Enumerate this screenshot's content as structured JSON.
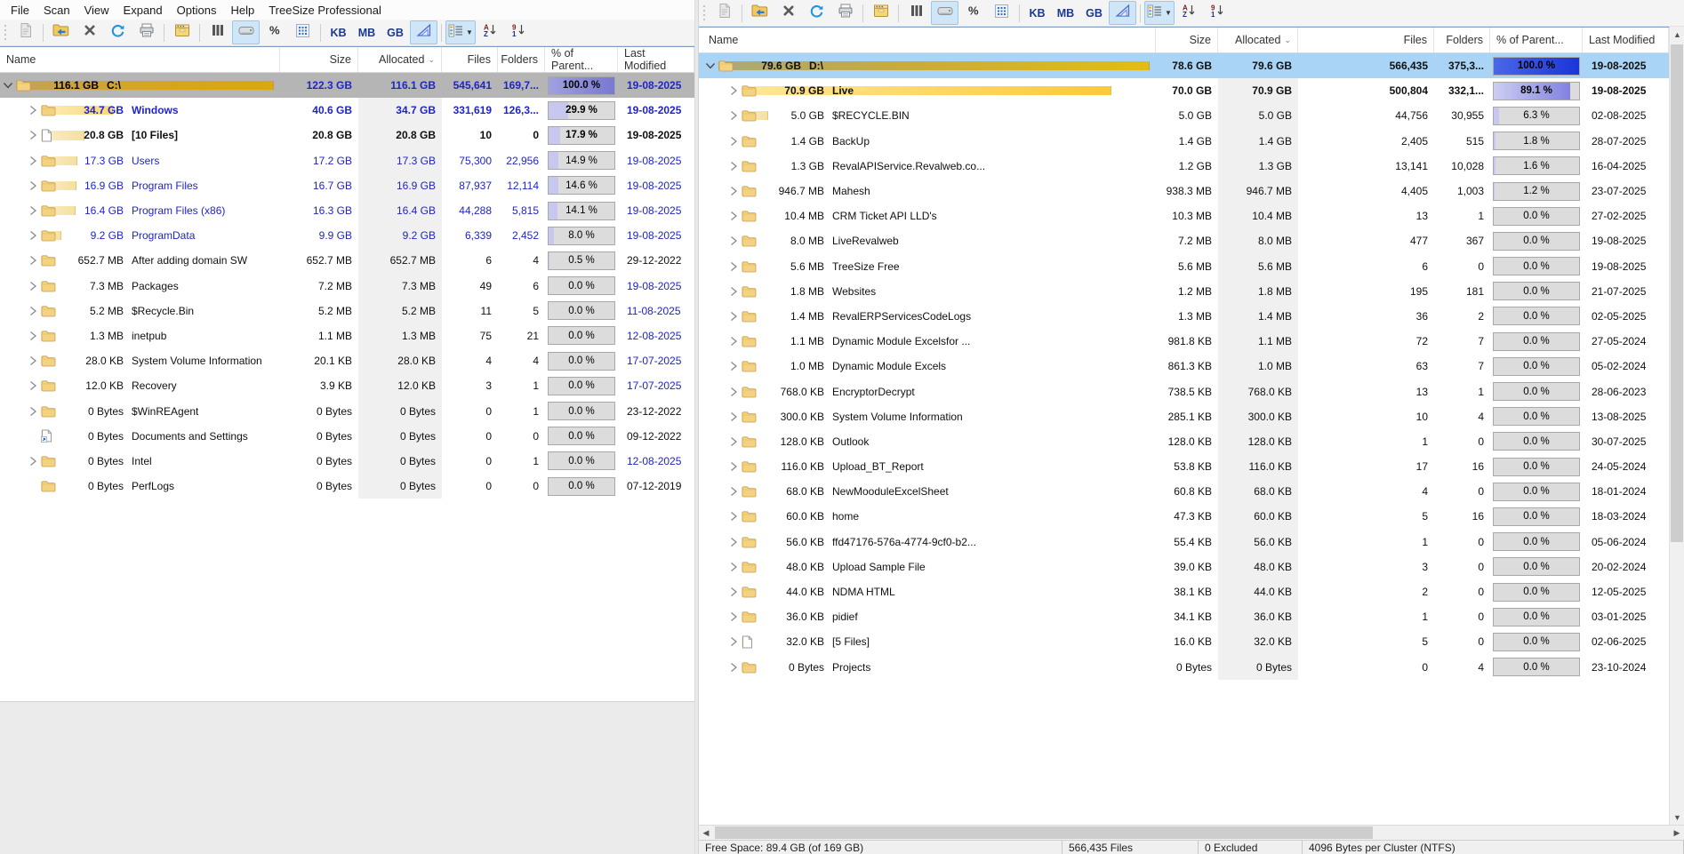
{
  "app_title": "TreeSize Professional",
  "menu": {
    "items": [
      "File",
      "Scan",
      "View",
      "Expand",
      "Options",
      "Help",
      "TreeSize Professional"
    ]
  },
  "toolbar": {
    "items": [
      {
        "type": "grip",
        "name": "toolbar-grip"
      },
      {
        "type": "btn",
        "icon": "report-icon",
        "disabled": true
      },
      {
        "type": "sep"
      },
      {
        "type": "btn",
        "icon": "select-directory-icon"
      },
      {
        "type": "btn",
        "icon": "stop-scan-icon"
      },
      {
        "type": "btn",
        "icon": "refresh-icon"
      },
      {
        "type": "btn",
        "icon": "print-icon"
      },
      {
        "type": "sep"
      },
      {
        "type": "btn",
        "icon": "archive-icon"
      },
      {
        "type": "sep"
      },
      {
        "type": "btn",
        "icon": "columns-icon"
      },
      {
        "type": "btn",
        "icon": "disk-space-icon",
        "pressed": true
      },
      {
        "type": "btn",
        "icon": "percent-icon"
      },
      {
        "type": "btn",
        "icon": "details-grid-icon"
      },
      {
        "type": "sep"
      },
      {
        "type": "btn",
        "label": "KB",
        "name": "unit-kb-button"
      },
      {
        "type": "btn",
        "label": "MB",
        "name": "unit-mb-button"
      },
      {
        "type": "btn",
        "label": "GB",
        "name": "unit-gb-button"
      },
      {
        "type": "btn",
        "icon": "size-chart-icon",
        "pressed": true
      },
      {
        "type": "sep"
      },
      {
        "type": "btn",
        "icon": "view-list-icon",
        "pressed": true,
        "dropdown": true
      },
      {
        "type": "btn",
        "icon": "sort-az-icon"
      },
      {
        "type": "btn",
        "icon": "sort-numeric-icon"
      }
    ]
  },
  "grid": {
    "columns": [
      {
        "label": "Name",
        "align": "left"
      },
      {
        "label": "Size",
        "align": "right"
      },
      {
        "label": "Allocated",
        "align": "right",
        "sort": "desc"
      },
      {
        "label": "Files",
        "align": "right"
      },
      {
        "label": "Folders",
        "align": "right"
      },
      {
        "label": "% of Parent...",
        "align": "left"
      },
      {
        "label": "Last Modified",
        "align": "left"
      }
    ]
  },
  "row_fields": [
    "indent",
    "chevron",
    "icon",
    "size_label",
    "name",
    "size",
    "allocated",
    "files",
    "folders",
    "pct_label",
    "pct_value",
    "last_modified",
    "text_color",
    "bold",
    "selected",
    "bar_style",
    "date_color"
  ],
  "left_pane": {
    "rows": [
      [
        0,
        "v",
        "folder",
        "116.1 GB",
        "C:\\",
        "122.3 GB",
        "116.1 GB",
        "545,641",
        "169,7...",
        "100.0 %",
        100,
        "19-08-2025",
        "navy",
        true,
        true,
        "root-l",
        "navy"
      ],
      [
        1,
        ">",
        "folder",
        "34.7 GB",
        "Windows",
        "40.6 GB",
        "34.7 GB",
        "331,619",
        "126,3...",
        "29.9 %",
        29.9,
        "19-08-2025",
        "navy",
        true,
        false,
        "mid",
        "navy"
      ],
      [
        1,
        ">",
        "file",
        "20.8 GB",
        "[10 Files]",
        "20.8 GB",
        "20.8 GB",
        "10",
        "0",
        "17.9 %",
        17.9,
        "19-08-2025",
        "black",
        true,
        false,
        "lo",
        "black"
      ],
      [
        1,
        ">",
        "folder",
        "17.3 GB",
        "Users",
        "17.2 GB",
        "17.3 GB",
        "75,300",
        "22,956",
        "14.9 %",
        14.9,
        "19-08-2025",
        "navy",
        false,
        false,
        "lo",
        "navy"
      ],
      [
        1,
        ">",
        "folder",
        "16.9 GB",
        "Program Files",
        "16.7 GB",
        "16.9 GB",
        "87,937",
        "12,114",
        "14.6 %",
        14.6,
        "19-08-2025",
        "navy",
        false,
        false,
        "lo",
        "navy"
      ],
      [
        1,
        ">",
        "folder",
        "16.4 GB",
        "Program Files (x86)",
        "16.3 GB",
        "16.4 GB",
        "44,288",
        "5,815",
        "14.1 %",
        14.1,
        "19-08-2025",
        "navy",
        false,
        false,
        "lo",
        "navy"
      ],
      [
        1,
        ">",
        "folder",
        "9.2 GB",
        "ProgramData",
        "9.9 GB",
        "9.2 GB",
        "6,339",
        "2,452",
        "8.0 %",
        8,
        "19-08-2025",
        "navy",
        false,
        false,
        "lo",
        "navy"
      ],
      [
        1,
        ">",
        "folder",
        "652.7 MB",
        "After adding domain SW",
        "652.7 MB",
        "652.7 MB",
        "6",
        "4",
        "0.5 %",
        0.5,
        "29-12-2022",
        "black",
        false,
        false,
        "lo",
        "black"
      ],
      [
        1,
        ">",
        "folder",
        "7.3 MB",
        "Packages",
        "7.2 MB",
        "7.3 MB",
        "49",
        "6",
        "0.0 %",
        0,
        "19-08-2025",
        "black",
        false,
        false,
        "lo",
        "navy"
      ],
      [
        1,
        ">",
        "folder",
        "5.2 MB",
        "$Recycle.Bin",
        "5.2 MB",
        "5.2 MB",
        "11",
        "5",
        "0.0 %",
        0,
        "11-08-2025",
        "black",
        false,
        false,
        "lo",
        "navy"
      ],
      [
        1,
        ">",
        "folder",
        "1.3 MB",
        "inetpub",
        "1.1 MB",
        "1.3 MB",
        "75",
        "21",
        "0.0 %",
        0,
        "12-08-2025",
        "black",
        false,
        false,
        "lo",
        "navy"
      ],
      [
        1,
        ">",
        "folder",
        "28.0 KB",
        "System Volume Information",
        "20.1 KB",
        "28.0 KB",
        "4",
        "4",
        "0.0 %",
        0,
        "17-07-2025",
        "black",
        false,
        false,
        "lo",
        "navy"
      ],
      [
        1,
        ">",
        "folder",
        "12.0 KB",
        "Recovery",
        "3.9 KB",
        "12.0 KB",
        "3",
        "1",
        "0.0 %",
        0,
        "17-07-2025",
        "black",
        false,
        false,
        "lo",
        "navy"
      ],
      [
        1,
        ">",
        "folder",
        "0 Bytes",
        "$WinREAgent",
        "0 Bytes",
        "0 Bytes",
        "0",
        "1",
        "0.0 %",
        0,
        "23-12-2022",
        "black",
        false,
        false,
        "lo",
        "black"
      ],
      [
        1,
        "",
        "shortcut",
        "0 Bytes",
        "Documents and Settings",
        "0 Bytes",
        "0 Bytes",
        "0",
        "0",
        "0.0 %",
        0,
        "09-12-2022",
        "black",
        false,
        false,
        "lo",
        "black"
      ],
      [
        1,
        ">",
        "folder",
        "0 Bytes",
        "Intel",
        "0 Bytes",
        "0 Bytes",
        "0",
        "1",
        "0.0 %",
        0,
        "12-08-2025",
        "black",
        false,
        false,
        "lo",
        "navy"
      ],
      [
        1,
        "",
        "folder",
        "0 Bytes",
        "PerfLogs",
        "0 Bytes",
        "0 Bytes",
        "0",
        "0",
        "0.0 %",
        0,
        "07-12-2019",
        "black",
        false,
        false,
        "lo",
        "black"
      ]
    ]
  },
  "right_pane": {
    "rows": [
      [
        0,
        "v",
        "folder",
        "79.6 GB",
        "D:\\",
        "78.6 GB",
        "79.6 GB",
        "566,435",
        "375,3...",
        "100.0 %",
        100,
        "19-08-2025",
        "black",
        true,
        true,
        "root-r",
        "black"
      ],
      [
        1,
        ">",
        "folder",
        "70.9 GB",
        "Live",
        "70.0 GB",
        "70.9 GB",
        "500,804",
        "332,1...",
        "89.1 %",
        89.1,
        "19-08-2025",
        "black",
        true,
        false,
        "hi",
        "black"
      ],
      [
        1,
        ">",
        "folder",
        "5.0 GB",
        "$RECYCLE.BIN",
        "5.0 GB",
        "5.0 GB",
        "44,756",
        "30,955",
        "6.3 %",
        6.3,
        "02-08-2025",
        "black",
        false,
        false,
        "lo",
        "black"
      ],
      [
        1,
        ">",
        "folder",
        "1.4 GB",
        "BackUp",
        "1.4 GB",
        "1.4 GB",
        "2,405",
        "515",
        "1.8 %",
        1.8,
        "28-07-2025",
        "black",
        false,
        false,
        "lo",
        "black"
      ],
      [
        1,
        ">",
        "folder",
        "1.3 GB",
        "RevalAPIService.Revalweb.co...",
        "1.2 GB",
        "1.3 GB",
        "13,141",
        "10,028",
        "1.6 %",
        1.6,
        "16-04-2025",
        "black",
        false,
        false,
        "lo",
        "black"
      ],
      [
        1,
        ">",
        "folder",
        "946.7 MB",
        "Mahesh",
        "938.3 MB",
        "946.7 MB",
        "4,405",
        "1,003",
        "1.2 %",
        1.2,
        "23-07-2025",
        "black",
        false,
        false,
        "lo",
        "black"
      ],
      [
        1,
        ">",
        "folder",
        "10.4 MB",
        "CRM Ticket API LLD's",
        "10.3 MB",
        "10.4 MB",
        "13",
        "1",
        "0.0 %",
        0,
        "27-02-2025",
        "black",
        false,
        false,
        "lo",
        "black"
      ],
      [
        1,
        ">",
        "folder",
        "8.0 MB",
        "LiveRevalweb",
        "7.2 MB",
        "8.0 MB",
        "477",
        "367",
        "0.0 %",
        0,
        "19-08-2025",
        "black",
        false,
        false,
        "lo",
        "black"
      ],
      [
        1,
        ">",
        "folder",
        "5.6 MB",
        "TreeSize Free",
        "5.6 MB",
        "5.6 MB",
        "6",
        "0",
        "0.0 %",
        0,
        "19-08-2025",
        "black",
        false,
        false,
        "lo",
        "black"
      ],
      [
        1,
        ">",
        "folder",
        "1.8 MB",
        "Websites",
        "1.2 MB",
        "1.8 MB",
        "195",
        "181",
        "0.0 %",
        0,
        "21-07-2025",
        "black",
        false,
        false,
        "lo",
        "black"
      ],
      [
        1,
        ">",
        "folder",
        "1.4 MB",
        "RevalERPServicesCodeLogs",
        "1.3 MB",
        "1.4 MB",
        "36",
        "2",
        "0.0 %",
        0,
        "02-05-2025",
        "black",
        false,
        false,
        "lo",
        "black"
      ],
      [
        1,
        ">",
        "folder",
        "1.1 MB",
        "Dynamic Module Excelsfor ...",
        "981.8 KB",
        "1.1 MB",
        "72",
        "7",
        "0.0 %",
        0,
        "27-05-2024",
        "black",
        false,
        false,
        "lo",
        "black"
      ],
      [
        1,
        ">",
        "folder",
        "1.0 MB",
        "Dynamic Module Excels",
        "861.3 KB",
        "1.0 MB",
        "63",
        "7",
        "0.0 %",
        0,
        "05-02-2024",
        "black",
        false,
        false,
        "lo",
        "black"
      ],
      [
        1,
        ">",
        "folder",
        "768.0 KB",
        "EncryptorDecrypt",
        "738.5 KB",
        "768.0 KB",
        "13",
        "1",
        "0.0 %",
        0,
        "28-06-2023",
        "black",
        false,
        false,
        "lo",
        "black"
      ],
      [
        1,
        ">",
        "folder",
        "300.0 KB",
        "System Volume Information",
        "285.1 KB",
        "300.0 KB",
        "10",
        "4",
        "0.0 %",
        0,
        "13-08-2025",
        "black",
        false,
        false,
        "lo",
        "black"
      ],
      [
        1,
        ">",
        "folder",
        "128.0 KB",
        "Outlook",
        "128.0 KB",
        "128.0 KB",
        "1",
        "0",
        "0.0 %",
        0,
        "30-07-2025",
        "black",
        false,
        false,
        "lo",
        "black"
      ],
      [
        1,
        ">",
        "folder",
        "116.0 KB",
        "Upload_BT_Report",
        "53.8 KB",
        "116.0 KB",
        "17",
        "16",
        "0.0 %",
        0,
        "24-05-2024",
        "black",
        false,
        false,
        "lo",
        "black"
      ],
      [
        1,
        ">",
        "folder",
        "68.0 KB",
        "NewMooduleExcelSheet",
        "60.8 KB",
        "68.0 KB",
        "4",
        "0",
        "0.0 %",
        0,
        "18-01-2024",
        "black",
        false,
        false,
        "lo",
        "black"
      ],
      [
        1,
        ">",
        "folder",
        "60.0 KB",
        "home",
        "47.3 KB",
        "60.0 KB",
        "5",
        "16",
        "0.0 %",
        0,
        "18-03-2024",
        "black",
        false,
        false,
        "lo",
        "black"
      ],
      [
        1,
        ">",
        "folder",
        "56.0 KB",
        "ffd47176-576a-4774-9cf0-b2...",
        "55.4 KB",
        "56.0 KB",
        "1",
        "0",
        "0.0 %",
        0,
        "05-06-2024",
        "black",
        false,
        false,
        "lo",
        "black"
      ],
      [
        1,
        ">",
        "folder",
        "48.0 KB",
        "Upload Sample File",
        "39.0 KB",
        "48.0 KB",
        "3",
        "0",
        "0.0 %",
        0,
        "20-02-2024",
        "black",
        false,
        false,
        "lo",
        "black"
      ],
      [
        1,
        ">",
        "folder",
        "44.0 KB",
        "NDMA HTML",
        "38.1 KB",
        "44.0 KB",
        "2",
        "0",
        "0.0 %",
        0,
        "12-05-2025",
        "black",
        false,
        false,
        "lo",
        "black"
      ],
      [
        1,
        ">",
        "folder",
        "36.0 KB",
        "pidief",
        "34.1 KB",
        "36.0 KB",
        "1",
        "0",
        "0.0 %",
        0,
        "03-01-2025",
        "black",
        false,
        false,
        "lo",
        "black"
      ],
      [
        1,
        ">",
        "file",
        "32.0 KB",
        "[5 Files]",
        "16.0 KB",
        "32.0 KB",
        "5",
        "0",
        "0.0 %",
        0,
        "02-06-2025",
        "black",
        false,
        false,
        "lo",
        "black"
      ],
      [
        1,
        ">",
        "folder",
        "0 Bytes",
        "Projects",
        "0 Bytes",
        "0 Bytes",
        "0",
        "4",
        "0.0 %",
        0,
        "23-10-2024",
        "black",
        false,
        false,
        "lo",
        "black"
      ]
    ]
  },
  "status_bar": {
    "segments": [
      "Free Space: 89.4 GB  (of 169 GB)",
      "566,435  Files",
      "0 Excluded",
      "4096  Bytes per Cluster (NTFS)"
    ]
  }
}
